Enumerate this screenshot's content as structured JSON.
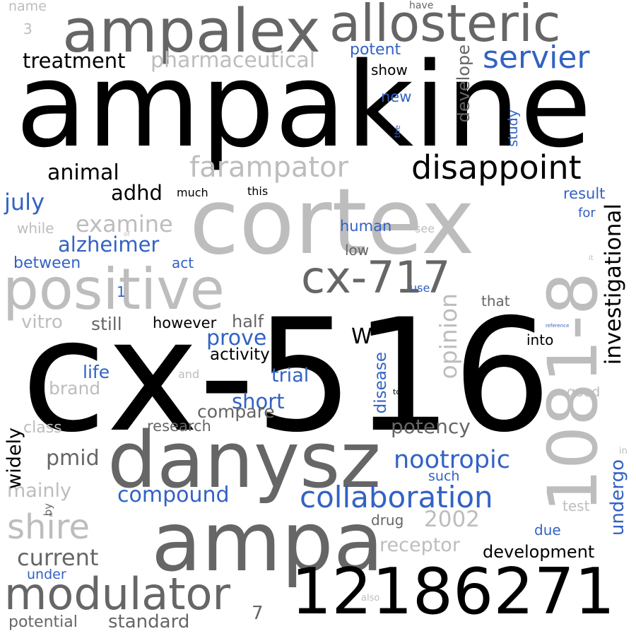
{
  "palette": {
    "black": "#000000",
    "dark_gray": "#666666",
    "light_gray": "#bdbdbd",
    "blue": "#3262c4"
  },
  "words": [
    {
      "text": "ampakine",
      "color": "black"
    },
    {
      "text": "cx-516",
      "color": "black"
    },
    {
      "text": "cortex",
      "color": "light_gray"
    },
    {
      "text": "ampalex",
      "color": "dark_gray"
    },
    {
      "text": "allosteric",
      "color": "dark_gray"
    },
    {
      "text": "danysz",
      "color": "dark_gray"
    },
    {
      "text": "ampa",
      "color": "dark_gray"
    },
    {
      "text": "positive",
      "color": "light_gray"
    },
    {
      "text": "12186271",
      "color": "black"
    },
    {
      "text": "1081-8",
      "color": "light_gray"
    },
    {
      "text": "modulator",
      "color": "dark_gray"
    },
    {
      "text": "cx-717",
      "color": "dark_gray"
    },
    {
      "text": "disappoint",
      "color": "black"
    },
    {
      "text": "farampator",
      "color": "light_gray"
    },
    {
      "text": "servier",
      "color": "blue"
    },
    {
      "text": "shire",
      "color": "light_gray"
    },
    {
      "text": "collaboration",
      "color": "blue"
    },
    {
      "text": "investigational",
      "color": "black"
    },
    {
      "text": "opinion",
      "color": "light_gray"
    },
    {
      "text": "nootropic",
      "color": "blue"
    },
    {
      "text": "pharmaceutical",
      "color": "light_gray"
    },
    {
      "text": "treatment",
      "color": "black"
    },
    {
      "text": "alzheimer",
      "color": "blue"
    },
    {
      "text": "examine",
      "color": "light_gray"
    },
    {
      "text": "animal",
      "color": "black"
    },
    {
      "text": "july",
      "color": "blue"
    },
    {
      "text": "adhd",
      "color": "black"
    },
    {
      "text": "compound",
      "color": "blue"
    },
    {
      "text": "current",
      "color": "dark_gray"
    },
    {
      "text": "standard",
      "color": "dark_gray"
    },
    {
      "text": "potential",
      "color": "dark_gray"
    },
    {
      "text": "prove",
      "color": "blue"
    },
    {
      "text": "short",
      "color": "blue"
    },
    {
      "text": "compare",
      "color": "dark_gray"
    },
    {
      "text": "potency",
      "color": "dark_gray"
    },
    {
      "text": "development",
      "color": "black"
    },
    {
      "text": "receptor",
      "color": "light_gray"
    },
    {
      "text": "2002",
      "color": "light_gray"
    },
    {
      "text": "undergo",
      "color": "blue"
    },
    {
      "text": "pmid",
      "color": "dark_gray"
    },
    {
      "text": "mainly",
      "color": "light_gray"
    },
    {
      "text": "widely",
      "color": "black"
    },
    {
      "text": "disease",
      "color": "blue"
    },
    {
      "text": "trial",
      "color": "blue"
    },
    {
      "text": "life",
      "color": "blue"
    },
    {
      "text": "brand",
      "color": "light_gray"
    },
    {
      "text": "class",
      "color": "light_gray"
    },
    {
      "text": "research",
      "color": "dark_gray"
    },
    {
      "text": "activity",
      "color": "black"
    },
    {
      "text": "half",
      "color": "dark_gray"
    },
    {
      "text": "however",
      "color": "black"
    },
    {
      "text": "still",
      "color": "dark_gray"
    },
    {
      "text": "vitro",
      "color": "light_gray"
    },
    {
      "text": "between",
      "color": "blue"
    },
    {
      "text": "act",
      "color": "blue"
    },
    {
      "text": "while",
      "color": "light_gray"
    },
    {
      "text": "potent",
      "color": "blue"
    },
    {
      "text": "show",
      "color": "black"
    },
    {
      "text": "new",
      "color": "blue"
    },
    {
      "text": "develope",
      "color": "dark_gray"
    },
    {
      "text": "study",
      "color": "blue"
    },
    {
      "text": "result",
      "color": "blue"
    },
    {
      "text": "for",
      "color": "blue"
    },
    {
      "text": "human",
      "color": "blue"
    },
    {
      "text": "low",
      "color": "dark_gray"
    },
    {
      "text": "see",
      "color": "light_gray"
    },
    {
      "text": "use",
      "color": "blue"
    },
    {
      "text": "that",
      "color": "dark_gray"
    },
    {
      "text": "into",
      "color": "black"
    },
    {
      "text": "W",
      "color": "black"
    },
    {
      "text": "good",
      "color": "light_gray"
    },
    {
      "text": "test",
      "color": "light_gray"
    },
    {
      "text": "due",
      "color": "blue"
    },
    {
      "text": "such",
      "color": "blue"
    },
    {
      "text": "drug",
      "color": "dark_gray"
    },
    {
      "text": "under",
      "color": "blue"
    },
    {
      "text": "name",
      "color": "light_gray"
    },
    {
      "text": "have",
      "color": "dark_gray"
    },
    {
      "text": "3",
      "color": "light_gray"
    },
    {
      "text": "much",
      "color": "black"
    },
    {
      "text": "this",
      "color": "black"
    },
    {
      "text": "1",
      "color": "blue"
    },
    {
      "text": "7",
      "color": "dark_gray"
    },
    {
      "text": "by",
      "color": "dark_gray"
    },
    {
      "text": "and",
      "color": "light_gray"
    },
    {
      "text": "to",
      "color": "black"
    },
    {
      "text": "also",
      "color": "light_gray"
    },
    {
      "text": "in",
      "color": "light_gray"
    },
    {
      "text": "it",
      "color": "light_gray"
    },
    {
      "text": "the",
      "color": "blue"
    },
    {
      "text": "of",
      "color": "light_gray"
    },
    {
      "text": "reference",
      "color": "blue"
    }
  ]
}
